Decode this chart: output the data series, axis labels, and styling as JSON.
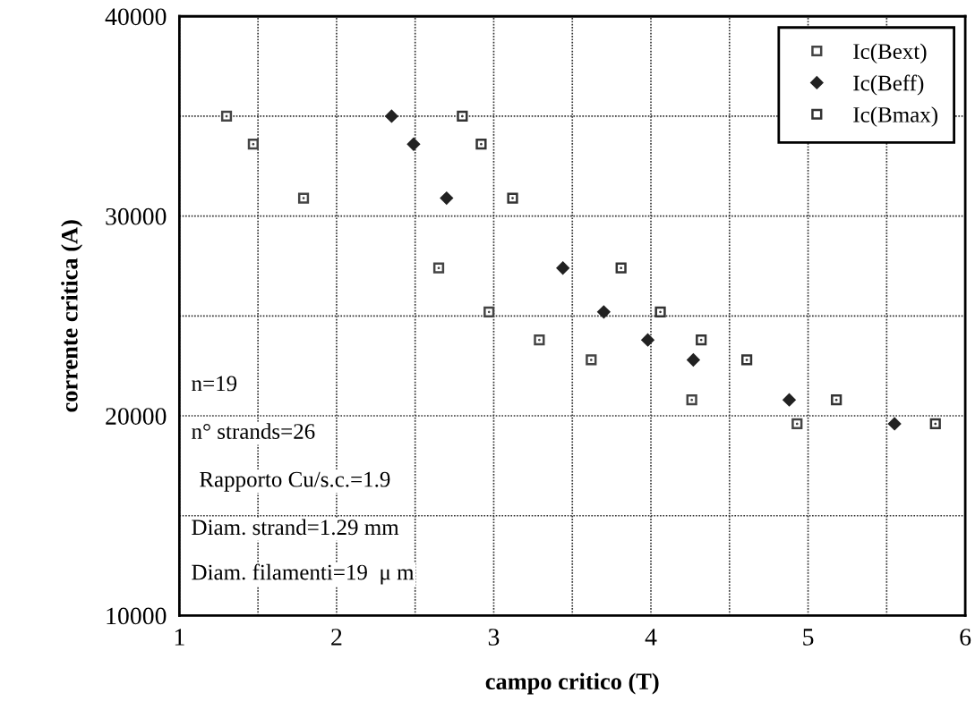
{
  "chart_data": {
    "type": "scatter",
    "xlabel": "campo critico (T)",
    "ylabel": "corrente critica (A)",
    "xlim": [
      1,
      6
    ],
    "xticks": [
      1,
      {
        "value": 1.5,
        "label": null
      },
      2,
      {
        "value": 2.5,
        "label": null
      },
      3,
      {
        "value": 3.5,
        "label": null
      },
      4,
      {
        "value": 4.5,
        "label": null
      },
      5,
      {
        "value": 5.5,
        "label": null
      },
      6
    ],
    "ylim": [
      10000,
      40000
    ],
    "yticks": [
      10000,
      {
        "value": 15000,
        "label": null
      },
      20000,
      {
        "value": 25000,
        "label": null
      },
      30000,
      {
        "value": 35000,
        "label": null
      },
      40000
    ],
    "grid": true,
    "legend": "top right",
    "series": [
      {
        "name": "Ic(Bext)",
        "color": "#444444",
        "marker": "square",
        "x": [
          1.3,
          1.47,
          1.79,
          2.65,
          2.97,
          3.29,
          3.62,
          4.26,
          4.93
        ],
        "values": [
          35000,
          33600,
          30900,
          27400,
          25200,
          23800,
          22800,
          20800,
          19600
        ]
      },
      {
        "name": "Ic(Beff)",
        "color": "#222222",
        "marker": "diamond",
        "x": [
          2.35,
          2.49,
          2.7,
          3.44,
          3.7,
          3.98,
          4.27,
          4.88,
          5.55
        ],
        "values": [
          35000,
          33600,
          30900,
          27400,
          25200,
          23800,
          22800,
          20800,
          19600
        ]
      },
      {
        "name": "Ic(Bmax)",
        "color": "#333333",
        "marker": "square",
        "x": [
          2.8,
          2.92,
          3.12,
          3.81,
          4.06,
          4.32,
          4.61,
          5.18,
          5.81
        ],
        "values": [
          35000,
          33600,
          30900,
          27400,
          25200,
          23800,
          22800,
          20800,
          19600
        ]
      }
    ],
    "annotations": [
      "n=19",
      "n° strands=26",
      "Rapporto Cu/s.c.=1.9",
      "Diam. strand=1.29 mm",
      "Diam. filamenti=19  μ m"
    ]
  }
}
